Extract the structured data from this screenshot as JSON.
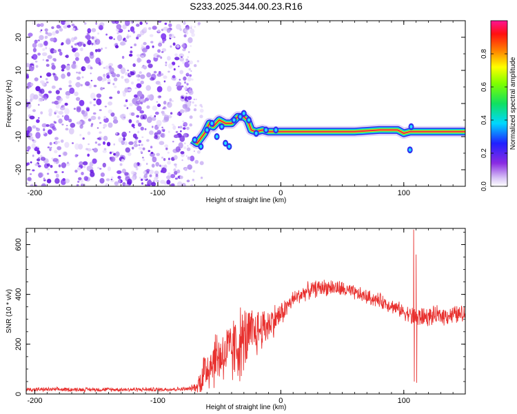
{
  "title": "S233.2025.344.00.23.R16",
  "chart_data": [
    {
      "type": "heatmap",
      "xlabel": "Height of straight line (km)",
      "ylabel": "Frequency (Hz)",
      "xlim": [
        -207,
        150
      ],
      "ylim": [
        -25,
        25
      ],
      "xticks": [
        -200,
        -100,
        0,
        100
      ],
      "yticks": [
        -20,
        -10,
        0,
        10,
        20
      ],
      "grid": false,
      "colorbar": {
        "label": "Normalized spectral amplitude",
        "range": [
          0,
          1
        ],
        "ticks": [
          "0.0",
          "0.2",
          "0.4",
          "0.6",
          "0.8"
        ],
        "tick_values": [
          0,
          0.2,
          0.4,
          0.6,
          0.8
        ],
        "colormap": "rainbow (white-violet-blue-cyan-green-yellow-red-magenta)"
      },
      "features": {
        "noise_region_x": [
          -207,
          -72
        ],
        "noise_dominant_color": "#7b2ff0",
        "track": {
          "x": [
            -72,
            -68,
            -62,
            -58,
            -55,
            -50,
            -45,
            -40,
            -35,
            -30,
            -27,
            -24,
            -20,
            -15,
            -10,
            -5,
            0,
            10,
            30,
            60,
            80,
            95,
            100,
            105,
            110,
            120,
            150
          ],
          "freq": [
            -11,
            -12,
            -9,
            -6,
            -7,
            -5,
            -6,
            -6,
            -4,
            -4,
            -5,
            -8,
            -8.5,
            -8,
            -8.5,
            -8.5,
            -8.5,
            -8.5,
            -8.5,
            -8.5,
            -8,
            -8,
            -9,
            -8.5,
            -8.5,
            -8.5,
            -8.5
          ]
        },
        "track_color": "#e8244a"
      }
    },
    {
      "type": "line",
      "xlabel": "Height of straight line (km)",
      "ylabel": "SNR (10 * v/v)",
      "xlim": [
        -207,
        150
      ],
      "ylim": [
        0,
        665
      ],
      "xticks": [
        -200,
        -100,
        0,
        100
      ],
      "yticks": [
        0,
        200,
        400,
        600
      ],
      "grid": false,
      "series": [
        {
          "color": "#e8302e",
          "envelope": {
            "x": [
              -207,
              -150,
              -100,
              -75,
              -68,
              -63,
              -58,
              -52,
              -46,
              -40,
              -34,
              -28,
              -20,
              -10,
              0,
              10,
              20,
              30,
              40,
              50,
              60,
              70,
              80,
              90,
              100,
              105,
              108,
              109,
              110,
              111,
              113,
              120,
              130,
              140,
              150
            ],
            "baseline": [
              18,
              18,
              18,
              20,
              30,
              80,
              120,
              150,
              160,
              170,
              200,
              220,
              250,
              280,
              320,
              380,
              410,
              425,
              430,
              420,
              405,
              390,
              375,
              355,
              330,
              320,
              300,
              320,
              310,
              300,
              310,
              310,
              315,
              318,
              320
            ],
            "spread": [
              10,
              10,
              10,
              10,
              25,
              120,
              130,
              140,
              140,
              160,
              180,
              160,
              120,
              90,
              60,
              40,
              40,
              40,
              40,
              40,
              35,
              35,
              35,
              35,
              35,
              40,
              60,
              60,
              60,
              60,
              50,
              45,
              45,
              45,
              45
            ]
          },
          "spikes": [
            {
              "x": 108,
              "y": 660
            },
            {
              "x": 108.5,
              "y": 50
            },
            {
              "x": 110,
              "y": 560
            },
            {
              "x": 110.5,
              "y": 45
            }
          ]
        }
      ]
    }
  ]
}
